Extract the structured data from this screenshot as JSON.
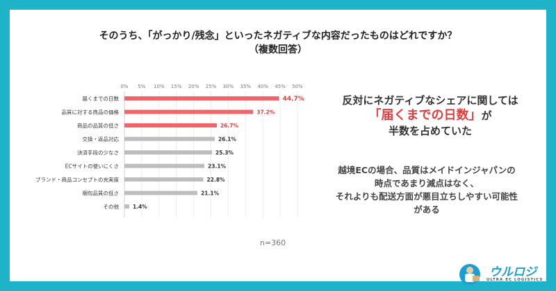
{
  "title_line1": "そのうち、「がっかり/残念」といったネガティブな内容だったものはどれですか？",
  "title_line2": "（複数回答）",
  "chart_data": {
    "type": "bar",
    "orientation": "horizontal",
    "categories": [
      "届くまでの日数",
      "品質に対する商品の価格",
      "商品の品質の低さ",
      "交換・返品対応",
      "決済手段の少なさ",
      "ECサイトの使いにくさ",
      "ブランド・商品コンセプトの充実度",
      "梱包品質の低さ",
      "その他"
    ],
    "values": [
      44.7,
      37.2,
      26.7,
      26.1,
      25.3,
      23.1,
      22.8,
      21.1,
      1.4
    ],
    "value_labels": [
      "44.7%",
      "37.2%",
      "26.7%",
      "26.1%",
      "25.3%",
      "23.1%",
      "22.8%",
      "21.1%",
      "1.4%"
    ],
    "highlighted": [
      true,
      true,
      true,
      false,
      false,
      false,
      false,
      false,
      false
    ],
    "xlim": [
      0,
      50
    ],
    "x_ticks": [
      "0%",
      "5%",
      "10%",
      "15%",
      "20%",
      "25%",
      "30%",
      "35%",
      "40%",
      "45%",
      "50%"
    ],
    "colors": {
      "highlight": "#f0646a",
      "normal": "#bdbdbd",
      "highlight_label": "#e53d3d",
      "normal_label": "#333333"
    }
  },
  "caption1_line1": "反対にネガティブなシェアに関しては",
  "caption1_highlight": "「届くまでの日数」",
  "caption1_after": "が",
  "caption1_line3": "半数を占めていた",
  "caption2_line1": "越境ECの場合、品質はメイドインジャパンの",
  "caption2_line2": "時点であまり減点はなく、",
  "caption2_line3": "それよりも配送方面が悪目立ちしやすい可能性",
  "caption2_line4": "がある",
  "sample_size": "n=360",
  "logo_text": "ウルロジ",
  "logo_subtext": "ULTRA EC LOGISTICS",
  "frame_color": "#1fb3c9"
}
